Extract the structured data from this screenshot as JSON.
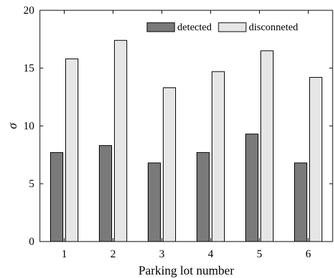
{
  "chart_data": {
    "type": "bar",
    "categories": [
      "1",
      "2",
      "3",
      "4",
      "5",
      "6"
    ],
    "series": [
      {
        "name": "detected",
        "values": [
          7.7,
          8.3,
          6.8,
          7.7,
          9.3,
          6.8
        ],
        "color": "#7a7a7a"
      },
      {
        "name": "disconneted",
        "values": [
          15.8,
          17.4,
          13.3,
          14.7,
          16.5,
          14.2
        ],
        "color": "#e6e6e6"
      }
    ],
    "xlabel": "Parking lot number",
    "ylabel": "σ",
    "ylim": [
      0,
      20
    ],
    "yticks": [
      0,
      5,
      10,
      15,
      20
    ],
    "grid": false,
    "legend_position": "top-right"
  }
}
